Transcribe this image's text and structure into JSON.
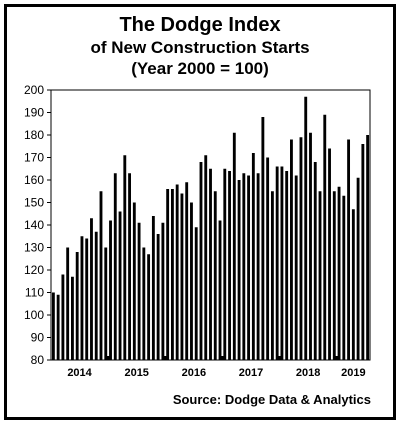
{
  "chart_data": {
    "type": "bar",
    "title": "The Dodge Index",
    "subtitle": "of New Construction Starts",
    "note": "(Year 2000 = 100)",
    "source": "Source:  Dodge Data & Analytics",
    "ylim": [
      80,
      200
    ],
    "yticks": [
      80,
      90,
      100,
      110,
      120,
      130,
      140,
      150,
      160,
      170,
      180,
      190,
      200
    ],
    "year_labels": [
      "2014",
      "2015",
      "2016",
      "2017",
      "2018",
      "2019"
    ],
    "bar_color": "#000000",
    "grid": false,
    "values": [
      110,
      109,
      118,
      130,
      117,
      128,
      135,
      134,
      143,
      137,
      155,
      130,
      142,
      163,
      146,
      171,
      163,
      150,
      141,
      130,
      127,
      144,
      136,
      141,
      156,
      156,
      158,
      154,
      159,
      150,
      139,
      168,
      171,
      165,
      155,
      142,
      165,
      164,
      181,
      160,
      163,
      162,
      172,
      163,
      188,
      170,
      155,
      166,
      166,
      164,
      178,
      162,
      179,
      197,
      181,
      168,
      155,
      189,
      174,
      155,
      157,
      153,
      178,
      147,
      161,
      176,
      180
    ]
  }
}
